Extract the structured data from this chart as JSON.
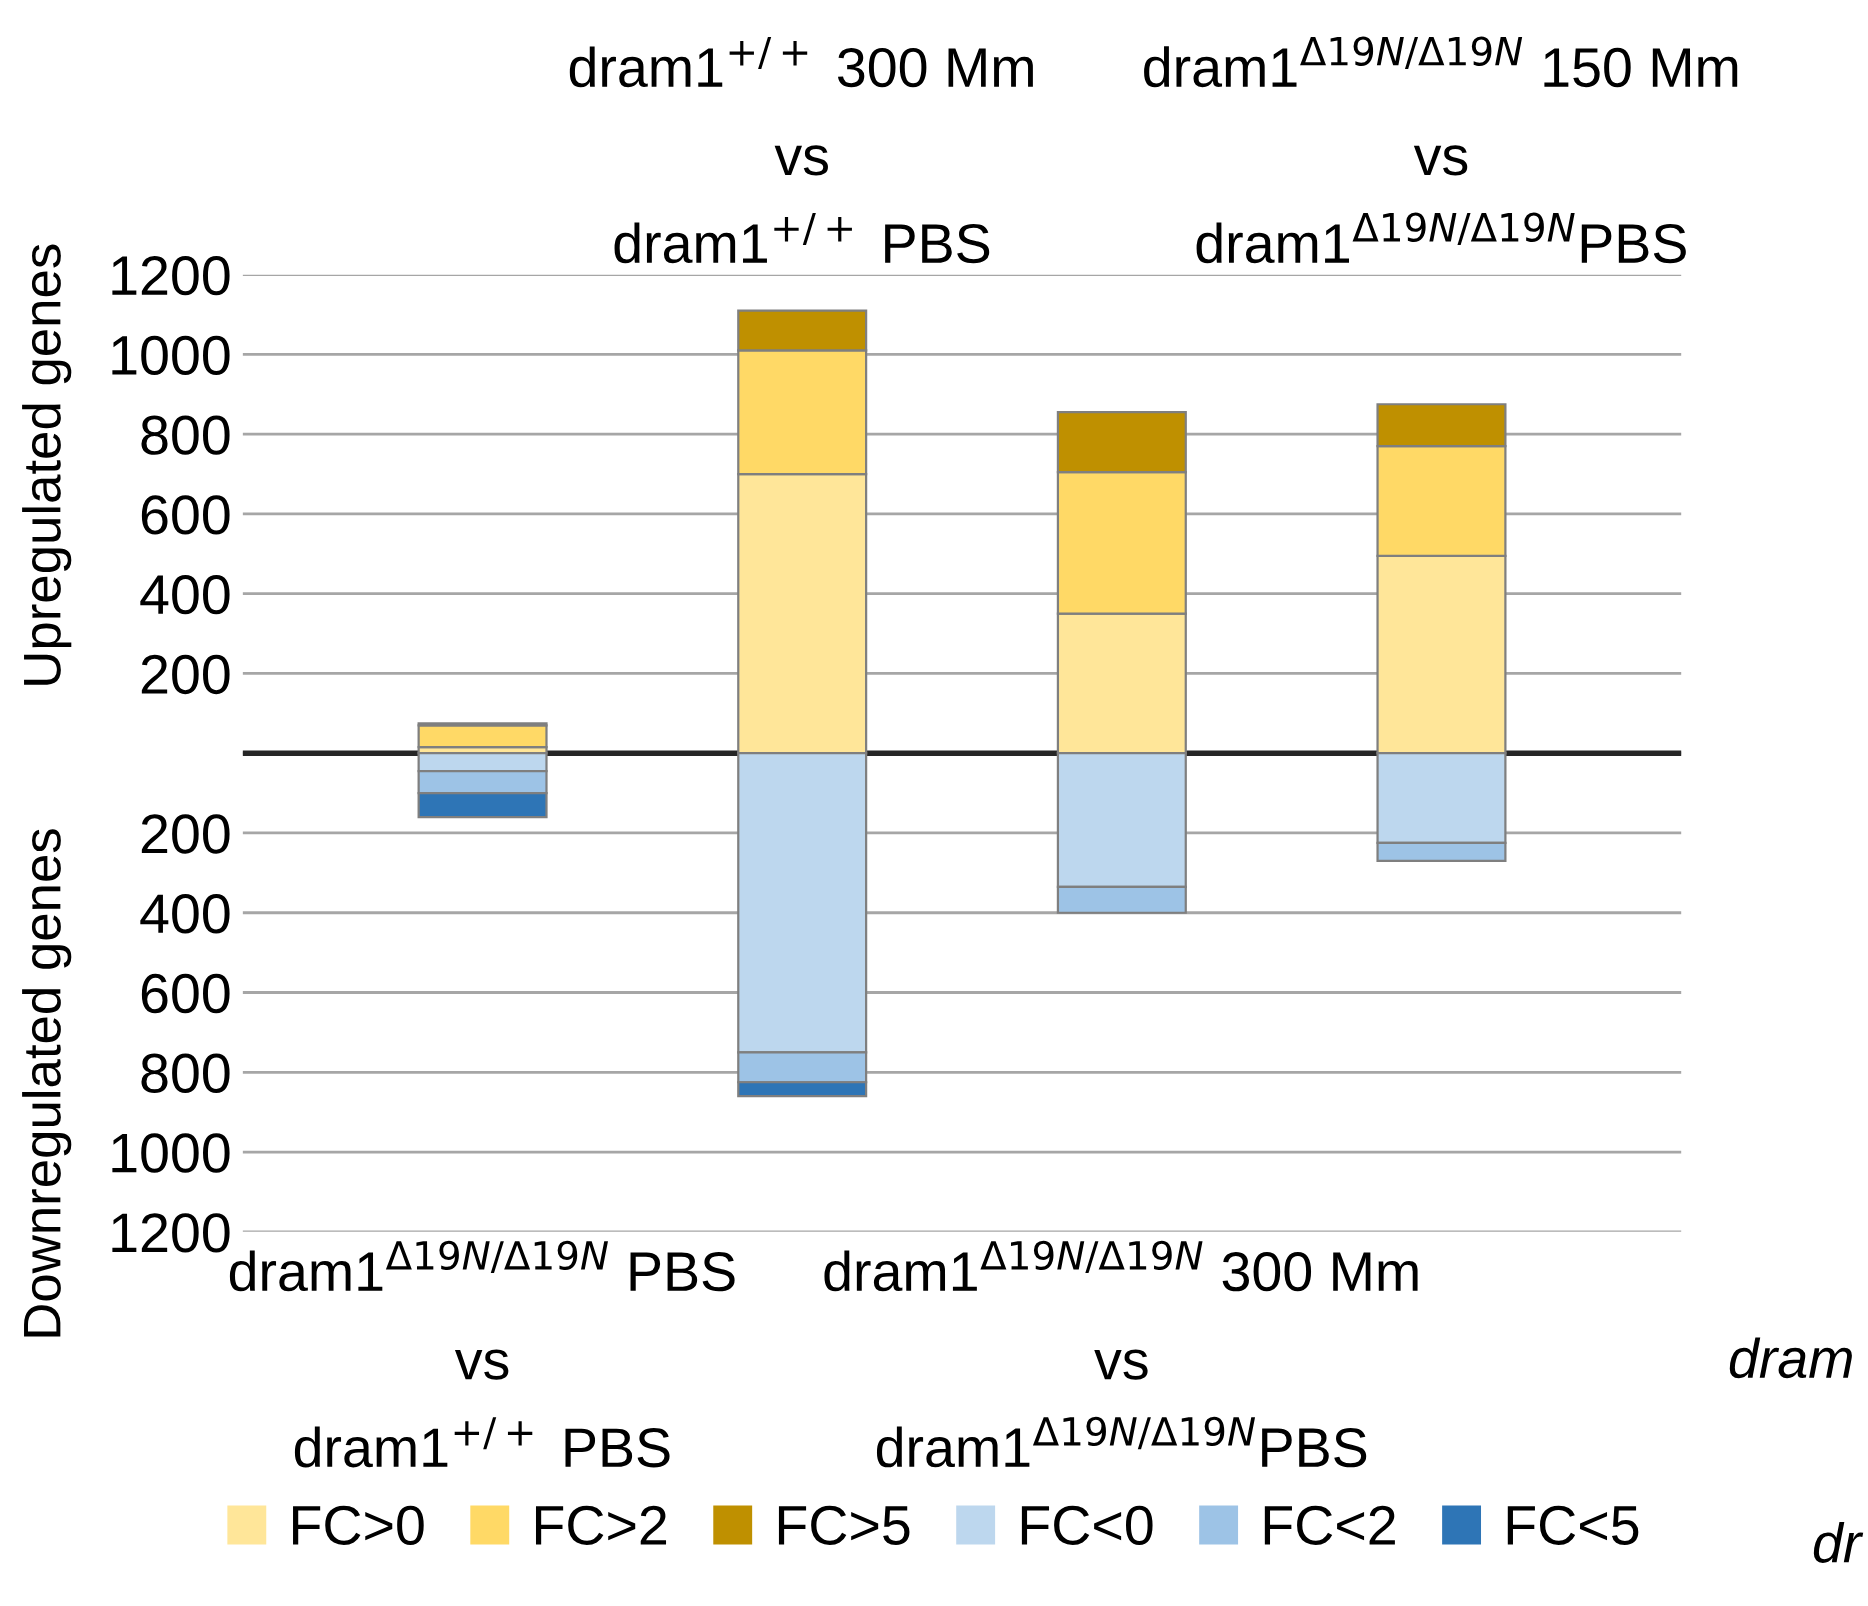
{
  "chart_data": {
    "type": "bar",
    "stacked": true,
    "categories": [
      "dram1$^{Δ19N/Δ19N}$ PBS\nvs\ndram1$^{+/+}$ PBS",
      "dram1$^{+/+}$ 300 Mm\nvs\ndram1$^{+/+}$ PBS",
      "dram1$^{Δ19N/Δ19N}$ 300 Mm\nvs\ndram1$^{Δ19N/Δ19N}$PBS",
      "dram1$^{Δ19N/Δ19N}$ 150 Mm\nvs\ndram1$^{Δ19N/Δ19N}$PBS"
    ],
    "series": [
      {
        "name": "FC>0",
        "color": "#ffe699",
        "values": [
          15,
          700,
          350,
          495
        ]
      },
      {
        "name": "FC>2",
        "color": "#ffd966",
        "values": [
          55,
          310,
          355,
          275
        ]
      },
      {
        "name": "FC>5",
        "color": "#bf9000",
        "values": [
          5,
          100,
          150,
          105
        ]
      },
      {
        "name": "FC<0",
        "color": "#bdd7ee",
        "values": [
          -45,
          -750,
          -335,
          -225
        ]
      },
      {
        "name": "FC<2",
        "color": "#9dc3e6",
        "values": [
          -55,
          -75,
          -65,
          -45
        ]
      },
      {
        "name": "FC<5",
        "color": "#2e75b6",
        "values": [
          -60,
          -35,
          null,
          null
        ]
      }
    ],
    "ylabel": "Upregulated genes",
    "annotations": [
      "Downregulated genes",
      "dram",
      "dr"
    ],
    "ylim": [
      -1200,
      1200
    ],
    "yticks": [
      {
        "value": -1200,
        "label": "1200"
      },
      {
        "value": -1000,
        "label": "1000"
      },
      {
        "value": -800,
        "label": "800"
      },
      {
        "value": -600,
        "label": "600"
      },
      {
        "value": -400,
        "label": "400"
      },
      {
        "value": -200,
        "label": "200"
      },
      {
        "value": 0,
        "label": null
      },
      200,
      400,
      600,
      800,
      1000,
      1200
    ],
    "ref_lines": [
      {
        "axis": "y",
        "value": 0,
        "color": "#262626"
      }
    ],
    "grid": "y",
    "legend": "bottom"
  }
}
